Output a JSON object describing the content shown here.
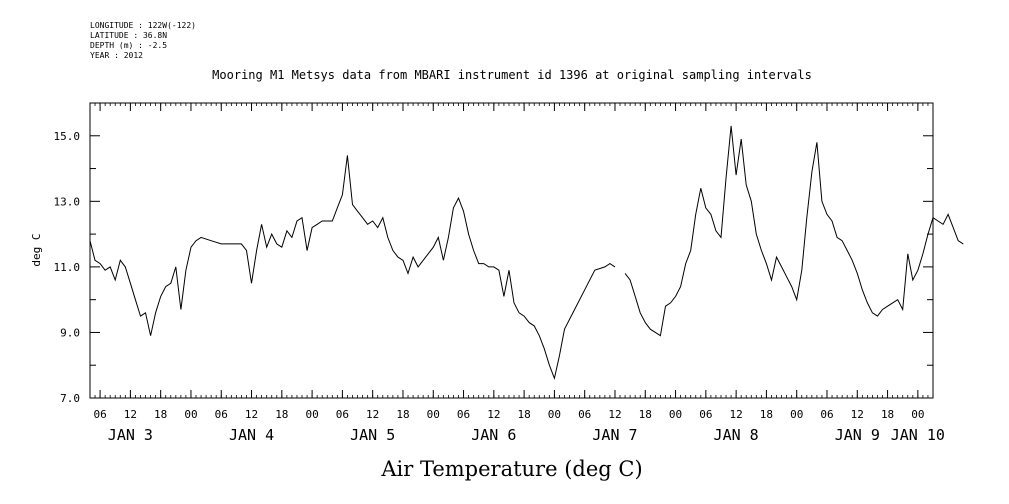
{
  "header": {
    "longitude": "LONGITUDE : 122W(-122)",
    "latitude": "LATITUDE : 36.8N",
    "depth": "DEPTH (m) : -2.5",
    "year": "YEAR : 2012"
  },
  "chart_data": {
    "type": "line",
    "title": "Mooring M1 Metsys data from MBARI instrument id 1396 at original sampling intervals",
    "xlabel": "Air Temperature (deg C)",
    "ylabel": "deg C",
    "ylim": [
      7.0,
      16.0
    ],
    "xlim_hours": [
      4,
      130
    ],
    "yticks": [
      "7.0",
      "9.0",
      "11.0",
      "13.0",
      "15.0"
    ],
    "ytick_values": [
      7,
      9,
      11,
      13,
      15
    ],
    "hour_ticks": [
      "06",
      "12",
      "18",
      "00",
      "06",
      "12",
      "18",
      "00",
      "06",
      "12",
      "18",
      "00",
      "06",
      "12",
      "18",
      "00",
      "06",
      "12",
      "18",
      "00",
      "06",
      "12",
      "18",
      "00",
      "06",
      "12",
      "18",
      "00",
      "06",
      "12",
      "18",
      "00",
      "06"
    ],
    "day_labels": [
      {
        "text": "JAN   3",
        "center_hour": 12
      },
      {
        "text": "JAN   4",
        "center_hour": 36
      },
      {
        "text": "JAN   5",
        "center_hour": 60
      },
      {
        "text": "JAN   6",
        "center_hour": 84
      },
      {
        "text": "JAN   7",
        "center_hour": 108
      },
      {
        "text": "JAN   8",
        "center_hour": 132
      },
      {
        "text": "JAN   9",
        "center_hour": 156
      },
      {
        "text": "JAN 10",
        "center_hour": 168
      }
    ],
    "hour_range": [
      4,
      170
    ],
    "series": [
      {
        "name": "",
        "segments": [
          [
            [
              4,
              11.8
            ],
            [
              5,
              11.2
            ],
            [
              6,
              11.1
            ],
            [
              7,
              10.9
            ],
            [
              8,
              11.0
            ],
            [
              9,
              10.6
            ],
            [
              10,
              11.2
            ],
            [
              11,
              11.0
            ],
            [
              12,
              10.5
            ],
            [
              13,
              10.0
            ],
            [
              14,
              9.5
            ],
            [
              15,
              9.6
            ],
            [
              16,
              8.9
            ],
            [
              17,
              9.6
            ],
            [
              18,
              10.1
            ],
            [
              19,
              10.4
            ],
            [
              20,
              10.5
            ],
            [
              21,
              11.0
            ],
            [
              22,
              9.7
            ],
            [
              23,
              10.9
            ],
            [
              24,
              11.6
            ],
            [
              25,
              11.8
            ],
            [
              26,
              11.9
            ],
            [
              28,
              11.8
            ],
            [
              30,
              11.7
            ],
            [
              32,
              11.7
            ],
            [
              34,
              11.7
            ],
            [
              35,
              11.5
            ],
            [
              36,
              10.5
            ],
            [
              37,
              11.5
            ],
            [
              38,
              12.3
            ],
            [
              39,
              11.6
            ],
            [
              40,
              12.0
            ],
            [
              41,
              11.7
            ],
            [
              42,
              11.6
            ],
            [
              43,
              12.1
            ],
            [
              44,
              11.9
            ],
            [
              45,
              12.4
            ],
            [
              46,
              12.5
            ],
            [
              47,
              11.5
            ],
            [
              48,
              12.2
            ],
            [
              49,
              12.3
            ],
            [
              50,
              12.4
            ],
            [
              52,
              12.4
            ],
            [
              53,
              12.8
            ],
            [
              54,
              13.2
            ],
            [
              55,
              14.4
            ],
            [
              56,
              12.9
            ],
            [
              57,
              12.7
            ],
            [
              58,
              12.5
            ],
            [
              59,
              12.3
            ],
            [
              60,
              12.4
            ],
            [
              61,
              12.2
            ],
            [
              62,
              12.5
            ],
            [
              63,
              11.9
            ],
            [
              64,
              11.5
            ],
            [
              65,
              11.3
            ],
            [
              66,
              11.2
            ],
            [
              67,
              10.8
            ],
            [
              68,
              11.3
            ],
            [
              69,
              11.0
            ],
            [
              70,
              11.2
            ],
            [
              71,
              11.4
            ],
            [
              72,
              11.6
            ],
            [
              73,
              11.9
            ],
            [
              74,
              11.2
            ],
            [
              75,
              11.9
            ],
            [
              76,
              12.8
            ],
            [
              77,
              13.1
            ],
            [
              78,
              12.7
            ],
            [
              79,
              12.0
            ],
            [
              80,
              11.5
            ],
            [
              81,
              11.1
            ],
            [
              82,
              11.1
            ],
            [
              83,
              11.0
            ],
            [
              84,
              11.0
            ],
            [
              85,
              10.9
            ],
            [
              86,
              10.1
            ],
            [
              87,
              10.9
            ],
            [
              88,
              9.9
            ],
            [
              89,
              9.6
            ],
            [
              90,
              9.5
            ],
            [
              91,
              9.3
            ],
            [
              92,
              9.2
            ],
            [
              93,
              8.9
            ],
            [
              94,
              8.5
            ],
            [
              95,
              8.0
            ],
            [
              96,
              7.6
            ],
            [
              97,
              8.3
            ],
            [
              98,
              9.1
            ],
            [
              100,
              9.7
            ],
            [
              102,
              10.3
            ],
            [
              104,
              10.9
            ],
            [
              106,
              11.0
            ],
            [
              107,
              11.1
            ],
            [
              108,
              11.0
            ]
          ],
          [
            [
              110,
              10.8
            ],
            [
              111,
              10.6
            ],
            [
              112,
              10.1
            ],
            [
              113,
              9.6
            ],
            [
              114,
              9.3
            ],
            [
              115,
              9.1
            ],
            [
              116,
              9.0
            ],
            [
              117,
              8.9
            ],
            [
              118,
              9.8
            ],
            [
              119,
              9.9
            ],
            [
              120,
              10.1
            ],
            [
              121,
              10.4
            ],
            [
              122,
              11.1
            ],
            [
              123,
              11.5
            ],
            [
              124,
              12.6
            ],
            [
              125,
              13.4
            ],
            [
              126,
              12.8
            ],
            [
              127,
              12.6
            ],
            [
              128,
              12.1
            ],
            [
              129,
              11.9
            ],
            [
              130,
              13.7
            ],
            [
              131,
              15.3
            ],
            [
              132,
              13.8
            ],
            [
              133,
              14.9
            ],
            [
              134,
              13.5
            ],
            [
              135,
              13.0
            ],
            [
              136,
              12.0
            ],
            [
              137,
              11.5
            ],
            [
              138,
              11.1
            ],
            [
              139,
              10.6
            ],
            [
              140,
              11.3
            ],
            [
              141,
              11.0
            ],
            [
              142,
              10.7
            ],
            [
              143,
              10.4
            ],
            [
              144,
              10.0
            ],
            [
              145,
              10.9
            ],
            [
              146,
              12.5
            ],
            [
              147,
              13.9
            ],
            [
              148,
              14.8
            ],
            [
              149,
              13.0
            ],
            [
              150,
              12.6
            ],
            [
              151,
              12.4
            ],
            [
              152,
              11.9
            ],
            [
              153,
              11.8
            ],
            [
              154,
              11.5
            ],
            [
              155,
              11.2
            ],
            [
              156,
              10.8
            ],
            [
              157,
              10.3
            ],
            [
              158,
              9.9
            ],
            [
              159,
              9.6
            ],
            [
              160,
              9.5
            ],
            [
              161,
              9.7
            ],
            [
              162,
              9.8
            ],
            [
              163,
              9.9
            ],
            [
              164,
              10.0
            ],
            [
              165,
              9.7
            ],
            [
              166,
              11.4
            ],
            [
              167,
              10.6
            ],
            [
              168,
              10.9
            ],
            [
              169,
              11.4
            ],
            [
              170,
              12.0
            ],
            [
              171,
              12.5
            ],
            [
              172,
              12.4
            ],
            [
              173,
              12.3
            ],
            [
              174,
              12.6
            ],
            [
              175,
              12.2
            ],
            [
              176,
              11.8
            ],
            [
              177,
              11.7
            ]
          ]
        ]
      }
    ]
  }
}
